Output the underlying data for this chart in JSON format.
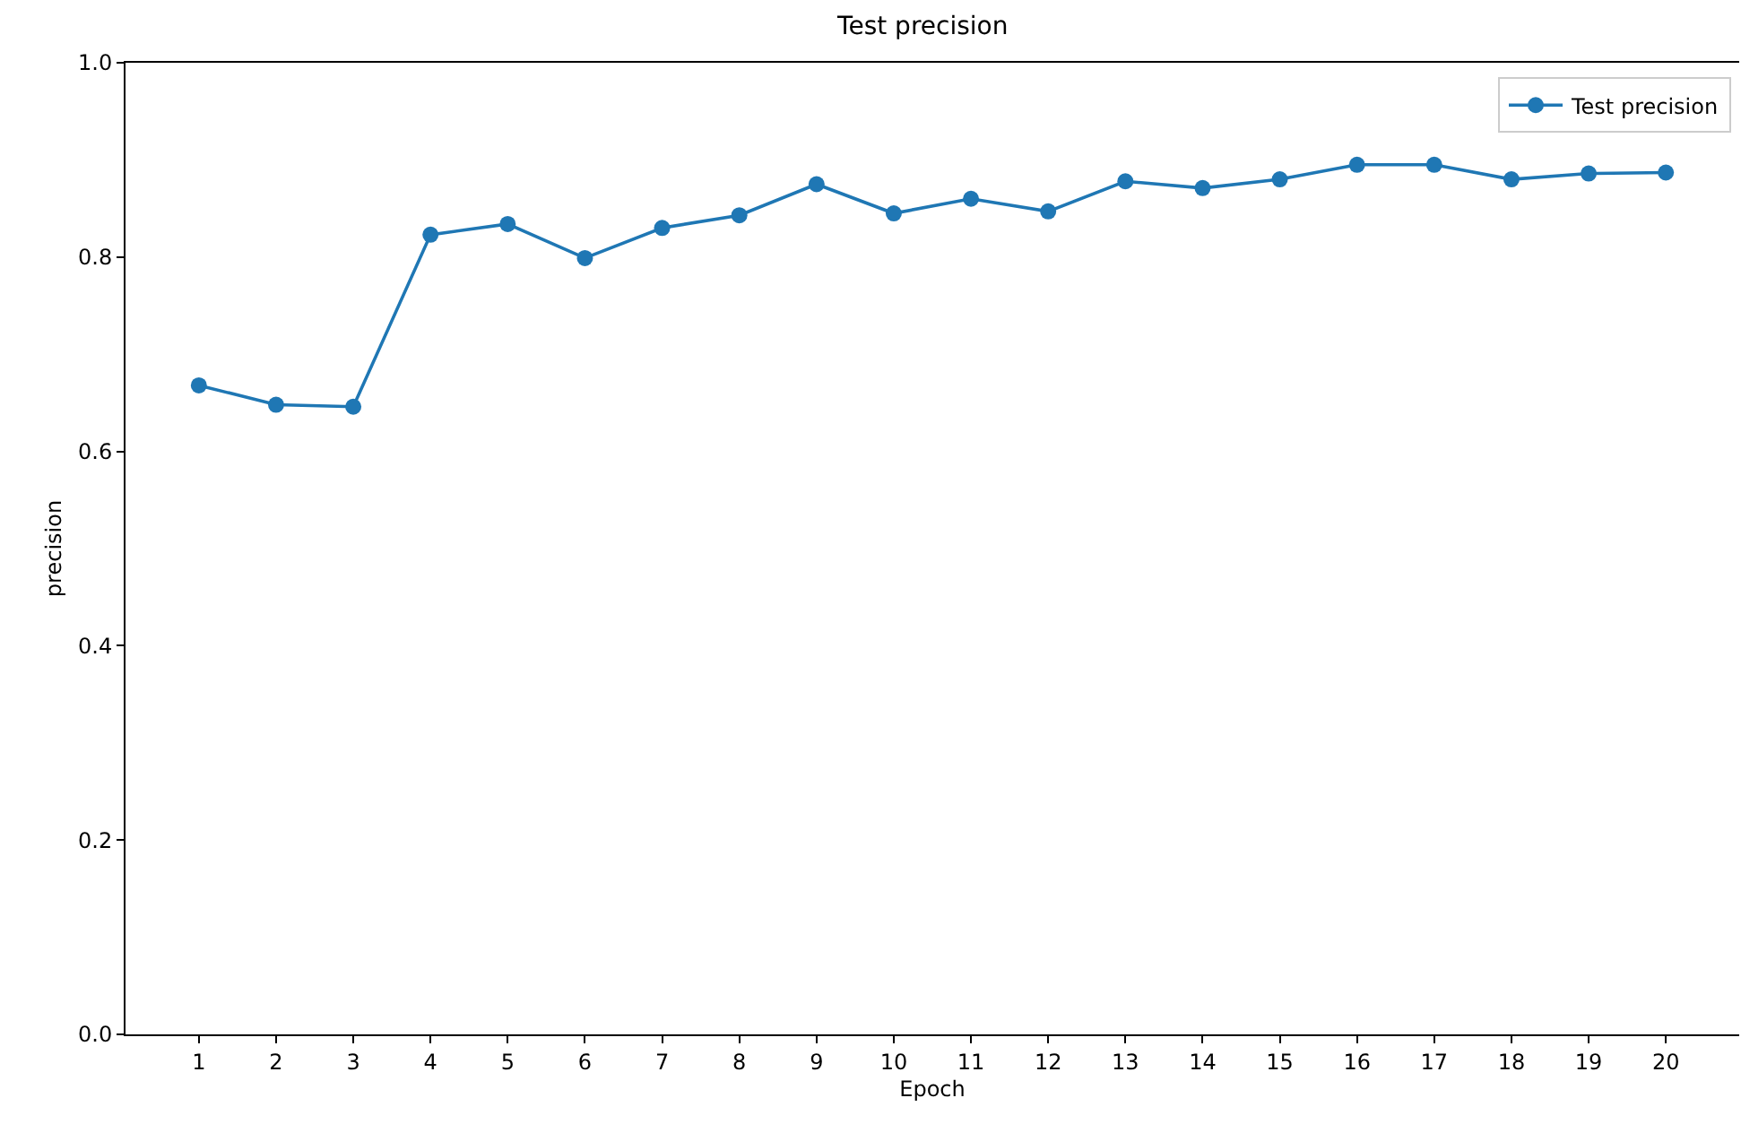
{
  "chart_data": {
    "type": "line",
    "title": "Test precision",
    "xlabel": "Epoch",
    "ylabel": "precision",
    "x": [
      1,
      2,
      3,
      4,
      5,
      6,
      7,
      8,
      9,
      10,
      11,
      12,
      13,
      14,
      15,
      16,
      17,
      18,
      19,
      20
    ],
    "series": [
      {
        "name": "Test precision",
        "color": "#1f77b4",
        "values": [
          0.668,
          0.648,
          0.646,
          0.823,
          0.834,
          0.799,
          0.83,
          0.843,
          0.875,
          0.845,
          0.86,
          0.847,
          0.878,
          0.871,
          0.88,
          0.895,
          0.895,
          0.88,
          0.886,
          0.887
        ]
      }
    ],
    "xlim": [
      0.05,
      20.95
    ],
    "xticks": [
      1,
      2,
      3,
      4,
      5,
      6,
      7,
      8,
      9,
      10,
      11,
      12,
      13,
      14,
      15,
      16,
      17,
      18,
      19,
      20
    ],
    "ylim": [
      0,
      1
    ],
    "yticks": [
      {
        "value": 0,
        "label": "0.0"
      },
      {
        "value": 0.2,
        "label": "0.2"
      },
      {
        "value": 0.4,
        "label": "0.4"
      },
      {
        "value": 0.6,
        "label": "0.6"
      },
      {
        "value": 0.8,
        "label": "0.8"
      },
      {
        "value": 1,
        "label": "1.0"
      }
    ],
    "legend": "top right",
    "marker": "circle",
    "line_style": "solid"
  }
}
